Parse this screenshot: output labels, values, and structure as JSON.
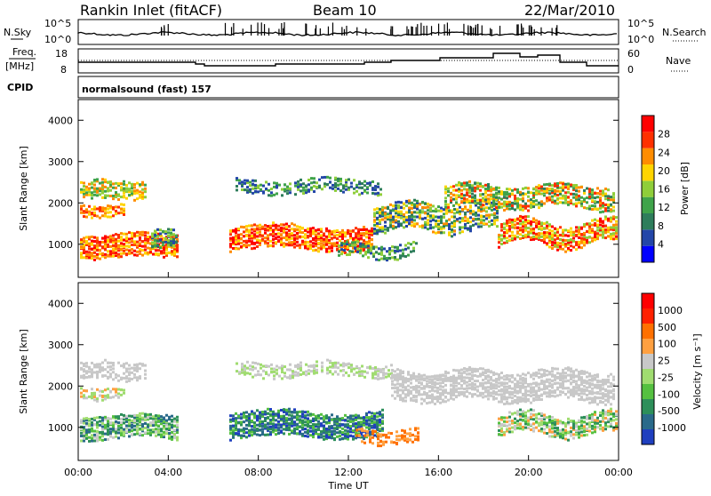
{
  "header": {
    "station": "Rankin Inlet (fitACF)",
    "beam": "Beam 10",
    "date": "22/Mar/2010"
  },
  "noise_panel": {
    "left_label": "N.Sky",
    "right_label": "N.Search",
    "left_ticks": [
      "10^5",
      "10^0"
    ],
    "right_ticks": [
      "10^5",
      "10^0"
    ]
  },
  "freq_panel": {
    "left_label_1": "Freq.",
    "left_label_2": "[MHz]",
    "right_label": "Nave",
    "left_ticks": [
      "18",
      "8"
    ],
    "right_ticks": [
      "60",
      "0"
    ]
  },
  "cpid_panel": {
    "label": "CPID",
    "text": "normalsound (fast)  157"
  },
  "chart_data": [
    {
      "type": "heatmap",
      "ylabel": "Slant Range [km]",
      "ylim": [
        200,
        4500
      ],
      "yticks": [
        "1000",
        "2000",
        "3000",
        "4000"
      ],
      "xticks": [
        "00:00",
        "04:00",
        "08:00",
        "12:00",
        "16:00",
        "20:00",
        "00:00"
      ],
      "colorbar_label": "Power [dB]",
      "colorbar_ticks": [
        "28",
        "24",
        "20",
        "16",
        "12",
        "8",
        "4"
      ],
      "colors": [
        "#0000ff",
        "#2346a8",
        "#2e7d5b",
        "#3fa34a",
        "#8fce3a",
        "#ffd400",
        "#ff8c00",
        "#ff3000",
        "#ff0000"
      ]
    },
    {
      "type": "heatmap",
      "ylabel": "Slant Range [km]",
      "ylim": [
        200,
        4500
      ],
      "yticks": [
        "1000",
        "2000",
        "3000",
        "4000"
      ],
      "xticks": [
        "00:00",
        "04:00",
        "08:00",
        "12:00",
        "16:00",
        "20:00",
        "00:00"
      ],
      "xlabel": "Time UT",
      "colorbar_label": "Velocity [m s⁻¹]",
      "colorbar_ticks": [
        "1000",
        "500",
        "100",
        "25",
        "-25",
        "-100",
        "-500",
        "-1000"
      ],
      "colors": [
        "#1f3fbf",
        "#2a6a8a",
        "#2d8f5a",
        "#55c040",
        "#a0dc70",
        "#c8c8c8",
        "#ffa040",
        "#ff7000",
        "#ff2000",
        "#ff0000"
      ]
    }
  ]
}
